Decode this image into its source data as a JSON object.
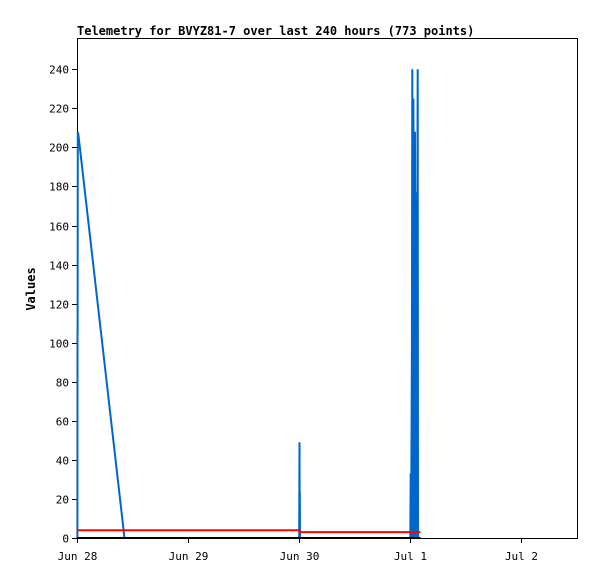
{
  "chart_data": {
    "type": "line",
    "title": "Telemetry for BVYZ81-7 over last 240 hours (773 points)",
    "ylabel": "Values",
    "xlabel": "",
    "xlim": [
      "2024-06-28T00:00",
      "2024-07-02T12:00"
    ],
    "ylim": [
      0,
      256
    ],
    "x_ticks": [
      {
        "label": "Jun 28",
        "x": "2024-06-28T00:00"
      },
      {
        "label": "Jun 29",
        "x": "2024-06-29T00:00"
      },
      {
        "label": "Jun 30",
        "x": "2024-06-30T00:00"
      },
      {
        "label": "Jul 1",
        "x": "2024-07-01T00:00"
      },
      {
        "label": "Jul 2",
        "x": "2024-07-02T00:00"
      }
    ],
    "y_ticks": [
      0,
      20,
      40,
      60,
      80,
      100,
      120,
      140,
      160,
      180,
      200,
      220,
      240
    ],
    "grid": false,
    "colors": {
      "blue": "#0066cc",
      "red": "#ff0000",
      "black": "#000000"
    },
    "series": [
      {
        "color": "#0066cc",
        "points": [
          [
            "2024-06-28T00:05",
            0
          ],
          [
            "2024-06-28T00:06",
            105
          ],
          [
            "2024-06-28T00:08",
            104
          ],
          [
            "2024-06-28T00:10",
            208
          ],
          [
            "2024-06-28T00:20",
            206
          ],
          [
            "2024-06-28T10:15",
            0
          ],
          [
            "2024-06-30T00:00",
            0
          ],
          [
            "2024-06-30T00:04",
            49
          ],
          [
            "2024-06-30T00:06",
            0
          ],
          [
            "2024-06-30T00:08",
            24
          ],
          [
            "2024-06-30T00:10",
            0
          ],
          [
            "2024-07-01T00:00",
            0
          ],
          [
            "2024-07-01T00:05",
            33
          ],
          [
            "2024-07-01T00:10",
            0
          ],
          [
            "2024-07-01T00:20",
            97
          ],
          [
            "2024-07-01T00:25",
            240
          ],
          [
            "2024-07-01T00:30",
            0
          ],
          [
            "2024-07-01T00:40",
            225
          ],
          [
            "2024-07-01T00:45",
            160
          ],
          [
            "2024-07-01T00:50",
            0
          ],
          [
            "2024-07-01T01:00",
            208
          ],
          [
            "2024-07-01T01:05",
            0
          ],
          [
            "2024-07-01T01:15",
            177
          ],
          [
            "2024-07-01T01:20",
            0
          ],
          [
            "2024-07-01T01:35",
            240
          ],
          [
            "2024-07-01T01:40",
            0
          ],
          [
            "2024-07-01T02:10",
            0
          ]
        ]
      },
      {
        "color": "#ff0000",
        "points": [
          [
            "2024-06-28T00:00",
            4
          ],
          [
            "2024-06-30T00:00",
            4
          ],
          [
            "2024-06-30T00:05",
            3
          ],
          [
            "2024-07-01T02:10",
            3
          ]
        ]
      },
      {
        "color": "#000000",
        "points": [
          [
            "2024-06-28T00:00",
            0
          ],
          [
            "2024-07-01T02:10",
            0
          ]
        ]
      }
    ]
  }
}
